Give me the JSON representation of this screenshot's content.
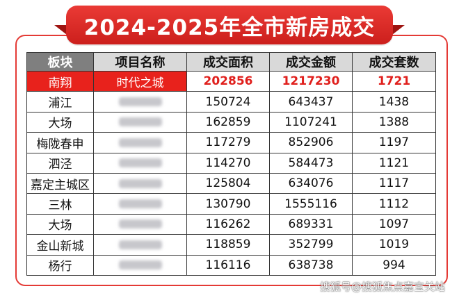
{
  "title": "2024-2025年全市新房成交",
  "headers": [
    "板块",
    "项目名称",
    "成交面积",
    "成交金额",
    "成交套数"
  ],
  "rows": [
    {
      "block": "南翔",
      "project": "时代之城",
      "area": "202856",
      "amount": "1217230",
      "units": "1721",
      "highlight": true
    },
    {
      "block": "浦江",
      "project": "",
      "area": "150724",
      "amount": "643437",
      "units": "1438"
    },
    {
      "block": "大场",
      "project": "",
      "area": "162859",
      "amount": "1107241",
      "units": "1388"
    },
    {
      "block": "梅陇春申",
      "project": "",
      "area": "117279",
      "amount": "852906",
      "units": "1197"
    },
    {
      "block": "泗泾",
      "project": "",
      "area": "114270",
      "amount": "584473",
      "units": "1121"
    },
    {
      "block": "嘉定主城区",
      "project": "",
      "area": "125804",
      "amount": "634076",
      "units": "1117"
    },
    {
      "block": "三林",
      "project": "",
      "area": "130790",
      "amount": "1555116",
      "units": "1112"
    },
    {
      "block": "大场",
      "project": "",
      "area": "116262",
      "amount": "689331",
      "units": "1097"
    },
    {
      "block": "金山新城",
      "project": "",
      "area": "118859",
      "amount": "352799",
      "units": "1019"
    },
    {
      "block": "杨行",
      "project": "",
      "area": "116116",
      "amount": "638738",
      "units": "994"
    }
  ],
  "watermark": "搜狐号@搜狐焦点嘉宝关站",
  "colors": {
    "accent": "#e8221c",
    "header_bg": "#d9d9d9",
    "header_first_bg": "#7f7f7f"
  }
}
